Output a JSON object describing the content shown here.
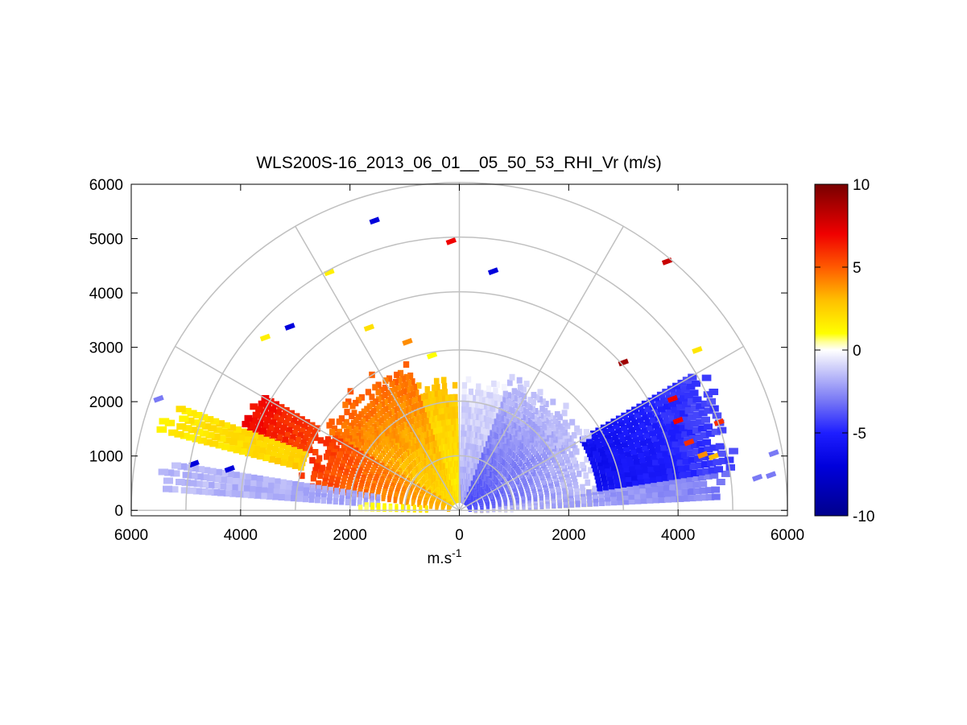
{
  "chart_data": {
    "type": "heatmap",
    "subtype": "polar-rhi-scan",
    "title": "WLS200S-16_2013_06_01__05_50_53_RHI_Vr (m/s)",
    "xlabel_base": "m.s",
    "xlabel_sup": "-1",
    "ylabel": "",
    "xlim": [
      -6000,
      6000
    ],
    "ylim": [
      -100,
      6000
    ],
    "xticks": [
      -6000,
      -4000,
      -2000,
      0,
      2000,
      4000,
      6000
    ],
    "xtick_labels": [
      "6000",
      "4000",
      "2000",
      "0",
      "2000",
      "4000",
      "6000"
    ],
    "yticks": [
      0,
      1000,
      2000,
      3000,
      4000,
      5000,
      6000
    ],
    "ytick_labels": [
      "0",
      "1000",
      "2000",
      "3000",
      "4000",
      "5000",
      "6000"
    ],
    "polar_grid": {
      "range_rings": [
        1000,
        2000,
        3000,
        4000,
        5000,
        6000
      ],
      "spokes_deg": [
        0,
        30,
        60,
        90,
        120,
        150,
        180
      ],
      "color": "#c0c0c0"
    },
    "colorbar": {
      "min": -10,
      "max": 10,
      "ticks": [
        -10,
        -5,
        0,
        5,
        10
      ],
      "tick_labels": [
        "-10",
        "-5",
        "0",
        "5",
        "10"
      ],
      "colormap": [
        [
          -10,
          "#00008c"
        ],
        [
          -7,
          "#0000dc"
        ],
        [
          -5,
          "#1e1eff"
        ],
        [
          -3,
          "#7a7af5"
        ],
        [
          -1,
          "#d2d2fa"
        ],
        [
          0,
          "#ffffff"
        ],
        [
          0.5,
          "#ffff96"
        ],
        [
          1,
          "#ffff00"
        ],
        [
          3,
          "#ffc000"
        ],
        [
          5,
          "#ff5a00"
        ],
        [
          7,
          "#f00000"
        ],
        [
          10,
          "#780000"
        ]
      ]
    },
    "velocity_regions": [
      {
        "elev_deg": [
          1,
          4
        ],
        "range_m": [
          300,
          1200
        ],
        "vr": [
          1,
          0.5
        ]
      },
      {
        "elev_deg": [
          1,
          4
        ],
        "range_m": [
          300,
          1200
        ],
        "vr": [
          -1,
          -0.5
        ]
      },
      {
        "elev_deg": [
          3,
          9
        ],
        "range_m": [
          300,
          2700
        ],
        "vr": [
          2.5,
          1
        ]
      },
      {
        "elev_deg": [
          3,
          9
        ],
        "range_m": [
          300,
          5200
        ],
        "vr": [
          -1.5,
          -3
        ]
      },
      {
        "elev_deg": [
          9,
          30
        ],
        "range_m": [
          200,
          2600
        ],
        "vr": [
          -4,
          -1
        ]
      },
      {
        "elev_deg": [
          9,
          30
        ],
        "range_m": [
          2600,
          5200
        ],
        "vr": [
          -6,
          -4
        ]
      },
      {
        "elev_deg": [
          30,
          70
        ],
        "range_m": [
          200,
          2800
        ],
        "vr": [
          -4,
          -1
        ]
      },
      {
        "elev_deg": [
          70,
          88
        ],
        "range_m": [
          200,
          2500
        ],
        "vr": [
          -2,
          -0.5
        ]
      },
      {
        "elev_deg": [
          92,
          110
        ],
        "range_m": [
          200,
          2500
        ],
        "vr": [
          1.5,
          3
        ]
      },
      {
        "elev_deg": [
          110,
          150
        ],
        "range_m": [
          200,
          3000
        ],
        "vr": [
          2,
          5
        ]
      },
      {
        "elev_deg": [
          150,
          171
        ],
        "range_m": [
          200,
          3000
        ],
        "vr": [
          3,
          6
        ]
      },
      {
        "elev_deg": [
          150,
          160
        ],
        "range_m": [
          3000,
          4300
        ],
        "vr": [
          5.5,
          7
        ]
      },
      {
        "elev_deg": [
          160,
          166
        ],
        "range_m": [
          3000,
          5800
        ],
        "vr": [
          2.5,
          1.5
        ]
      },
      {
        "elev_deg": [
          171,
          177
        ],
        "range_m": [
          1500,
          5600
        ],
        "vr": [
          -2,
          -1.5
        ]
      },
      {
        "elev_deg": [
          177,
          179
        ],
        "range_m": [
          600,
          1900
        ],
        "vr": [
          1.5,
          0.8
        ]
      }
    ],
    "isolated_points": [
      {
        "x": -5500,
        "y": 2050,
        "vr": -3
      },
      {
        "x": -4850,
        "y": 860,
        "vr": -7
      },
      {
        "x": -4200,
        "y": 760,
        "vr": -7
      },
      {
        "x": -3550,
        "y": 3180,
        "vr": 1.5
      },
      {
        "x": -3100,
        "y": 3380,
        "vr": -7
      },
      {
        "x": -2380,
        "y": 4380,
        "vr": 1.5
      },
      {
        "x": -1550,
        "y": 5330,
        "vr": -7
      },
      {
        "x": -1650,
        "y": 3360,
        "vr": 2
      },
      {
        "x": -950,
        "y": 3100,
        "vr": 4
      },
      {
        "x": -500,
        "y": 2850,
        "vr": 1
      },
      {
        "x": -150,
        "y": 4950,
        "vr": 7
      },
      {
        "x": 620,
        "y": 4400,
        "vr": -7
      },
      {
        "x": 3000,
        "y": 2720,
        "vr": 9
      },
      {
        "x": 3800,
        "y": 4580,
        "vr": 8
      },
      {
        "x": 4350,
        "y": 2950,
        "vr": 1.8
      },
      {
        "x": 3900,
        "y": 2050,
        "vr": 7
      },
      {
        "x": 4000,
        "y": 1650,
        "vr": 7
      },
      {
        "x": 4200,
        "y": 1250,
        "vr": 6
      },
      {
        "x": 4450,
        "y": 1020,
        "vr": 4
      },
      {
        "x": 4750,
        "y": 1620,
        "vr": 6
      },
      {
        "x": 4650,
        "y": 990,
        "vr": 3
      },
      {
        "x": 5750,
        "y": 1050,
        "vr": -3
      },
      {
        "x": 5700,
        "y": 650,
        "vr": -3
      },
      {
        "x": 5450,
        "y": 600,
        "vr": -3
      }
    ]
  }
}
